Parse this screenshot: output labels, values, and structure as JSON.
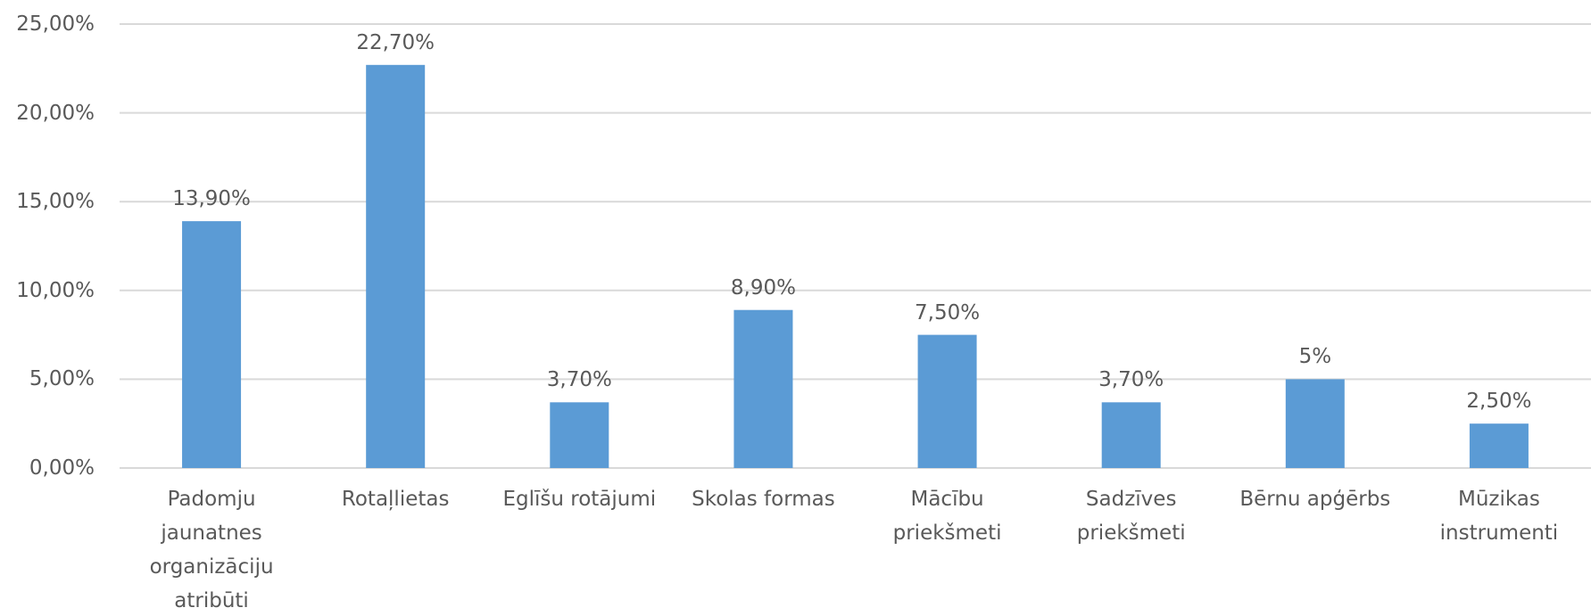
{
  "chart_data": {
    "type": "bar",
    "categories": [
      "Padomju\njaunatnes\norganizāciju\natribūti",
      "Rotaļlietas",
      "Eglīšu rotājumi",
      "Skolas formas",
      "Mācību\npriekšmeti",
      "Sadzīves\npriekšmeti",
      "Bērnu apģērbs",
      "Mūzikas\ninstrumenti"
    ],
    "values": [
      13.9,
      22.7,
      3.7,
      8.9,
      7.5,
      3.7,
      5,
      2.5
    ],
    "value_labels": [
      "13,90%",
      "22,70%",
      "3,70%",
      "8,90%",
      "7,50%",
      "3,70%",
      "5%",
      "2,50%"
    ],
    "color": "#5b9bd5",
    "ylim": [
      0,
      25
    ],
    "yticks": [
      {
        "value": 0,
        "label": "0,00%"
      },
      {
        "value": 5,
        "label": "5,00%"
      },
      {
        "value": 10,
        "label": "10,00%"
      },
      {
        "value": 15,
        "label": "15,00%"
      },
      {
        "value": 20,
        "label": "20,00%"
      },
      {
        "value": 25,
        "label": "25,00%"
      }
    ],
    "grid": true
  }
}
